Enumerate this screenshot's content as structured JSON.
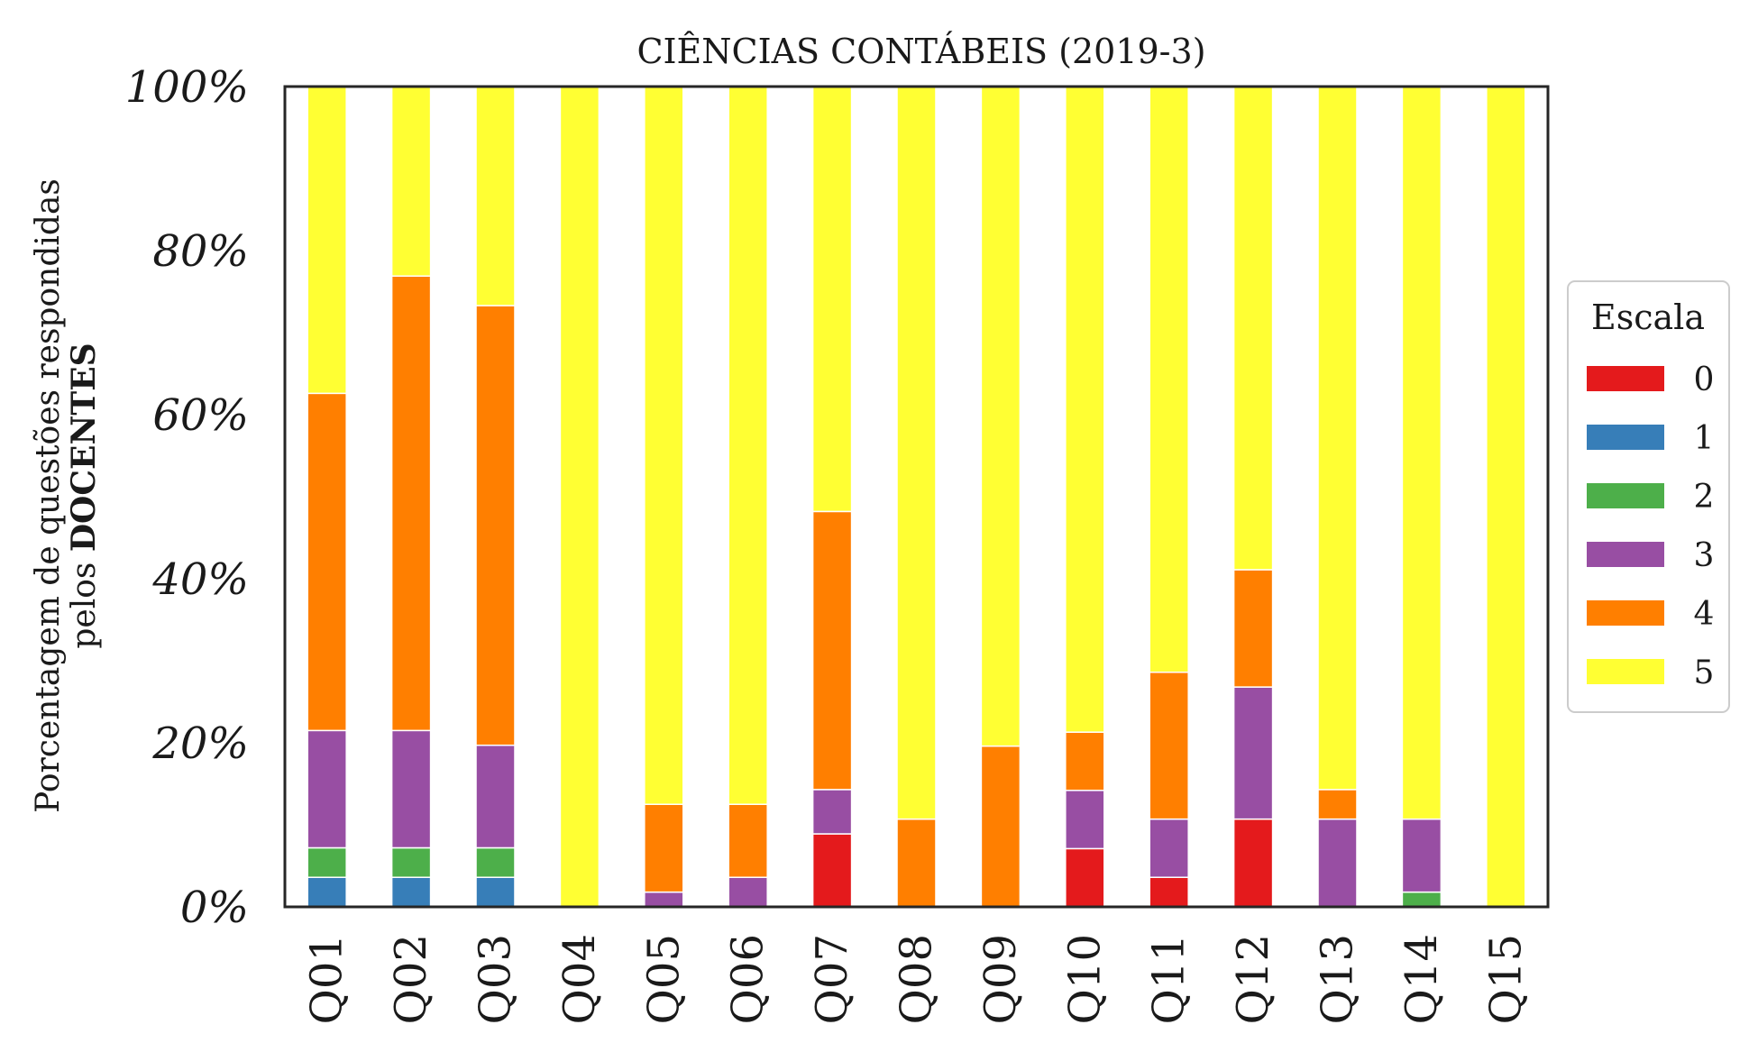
{
  "chart_data": {
    "type": "bar",
    "stacked": true,
    "title": "CIÊNCIAS CONTÁBEIS (2019-3)",
    "ylabel_line1": "Porcentagem de questões respondidas",
    "ylabel_line2_prefix": "pelos ",
    "ylabel_line2_bold": "DOCENTES",
    "ylim": [
      0,
      100
    ],
    "yticks": [
      "0%",
      "20%",
      "40%",
      "60%",
      "80%",
      "100%"
    ],
    "ytick_values": [
      0,
      20,
      40,
      60,
      80,
      100
    ],
    "categories": [
      "Q01",
      "Q02",
      "Q03",
      "Q04",
      "Q05",
      "Q06",
      "Q07",
      "Q08",
      "Q09",
      "Q10",
      "Q11",
      "Q12",
      "Q13",
      "Q14",
      "Q15"
    ],
    "legend_title": "Escala",
    "legend_position": "center-right",
    "series": [
      {
        "name": "0",
        "color": "#e41a1c",
        "values": [
          0,
          0,
          0,
          0,
          0,
          0,
          8.9,
          0,
          0,
          7.1,
          3.6,
          10.7,
          0,
          0,
          0
        ]
      },
      {
        "name": "1",
        "color": "#377eb8",
        "values": [
          3.6,
          3.6,
          3.6,
          0,
          0,
          0,
          0,
          0,
          0,
          0,
          0,
          0,
          0,
          0,
          0
        ]
      },
      {
        "name": "2",
        "color": "#4daf4a",
        "values": [
          3.6,
          3.6,
          3.6,
          0,
          0,
          0,
          0,
          0,
          0,
          0,
          0,
          0,
          0,
          1.8,
          0
        ]
      },
      {
        "name": "3",
        "color": "#984ea3",
        "values": [
          14.3,
          14.3,
          12.5,
          0,
          1.8,
          3.6,
          5.4,
          0,
          0,
          7.1,
          7.1,
          16.1,
          10.7,
          8.9,
          0
        ]
      },
      {
        "name": "4",
        "color": "#ff7f00",
        "values": [
          41.1,
          55.4,
          53.6,
          0,
          10.7,
          8.9,
          33.9,
          10.7,
          19.6,
          7.1,
          17.9,
          14.3,
          3.6,
          0,
          0
        ]
      },
      {
        "name": "5",
        "color": "#ffff33",
        "values": [
          37.4,
          23.1,
          26.7,
          100,
          87.5,
          87.5,
          51.8,
          89.3,
          80.4,
          78.7,
          71.4,
          58.9,
          85.7,
          89.3,
          100
        ]
      }
    ]
  }
}
